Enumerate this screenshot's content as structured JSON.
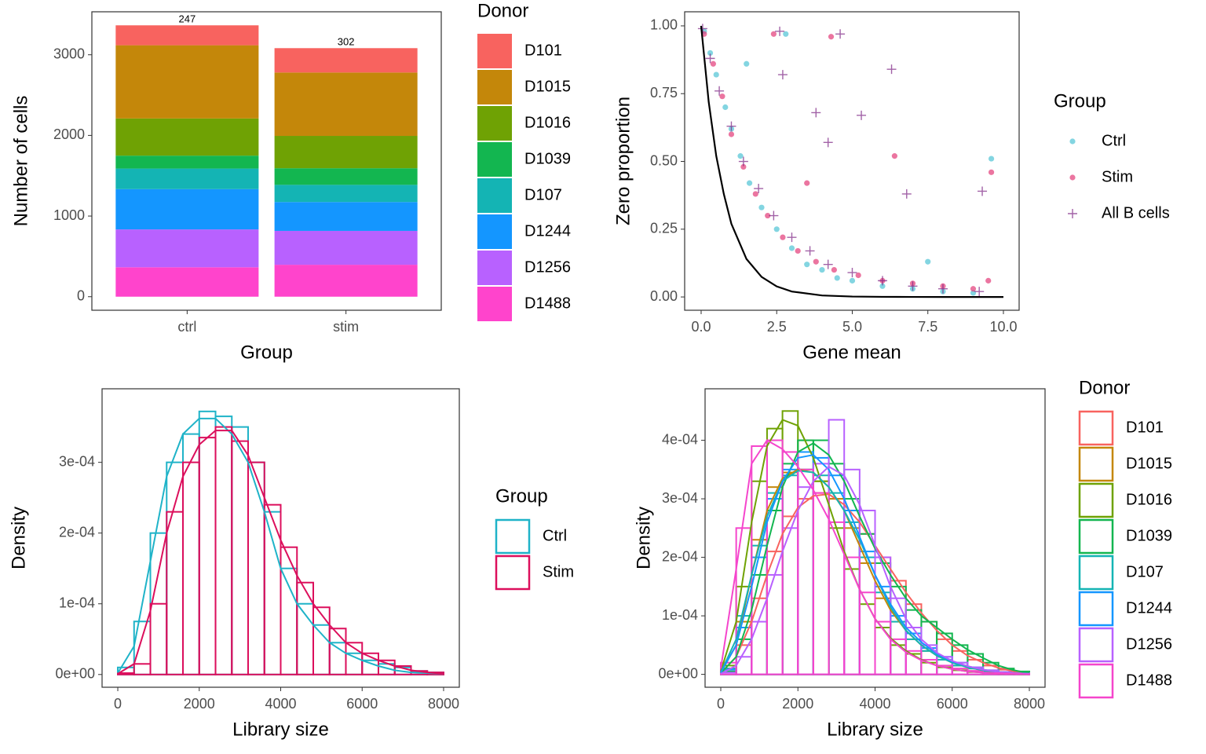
{
  "chart_data": [
    {
      "type": "stacked_bar",
      "x_label": "Group",
      "y_label": "Number of cells",
      "legend_title": "Donor",
      "legend": "right",
      "categories": [
        "ctrl",
        "stim"
      ],
      "series": [
        {
          "name": "D101",
          "color": "#f8635f",
          "values": [
            247,
            302
          ]
        },
        {
          "name": "D1015",
          "color": "#c4870a",
          "values": [
            908,
            786
          ]
        },
        {
          "name": "D1016",
          "color": "#6fa204",
          "values": [
            461,
            401
          ]
        },
        {
          "name": "D1039",
          "color": "#13b650",
          "values": [
            160,
            206
          ]
        },
        {
          "name": "D107",
          "color": "#14b4b4",
          "values": [
            255,
            213
          ]
        },
        {
          "name": "D1244",
          "color": "#1496ff",
          "values": [
            500,
            358
          ]
        },
        {
          "name": "D1256",
          "color": "#b861ff",
          "values": [
            469,
            420
          ]
        },
        {
          "name": "D1488",
          "color": "#ff44cc",
          "values": [
            365,
            396
          ]
        }
      ],
      "ylim": [
        -168,
        3533
      ],
      "yticks": [
        0,
        1000,
        2000,
        3000
      ]
    },
    {
      "type": "scatter",
      "x_label": "Gene mean",
      "y_label": "Zero proportion",
      "legend_title": "Group",
      "legend": "right",
      "series": [
        {
          "name": "Ctrl",
          "color": "#4fc3d4",
          "marker": "circle",
          "x": [
            0.1,
            0.3,
            0.5,
            0.8,
            1.0,
            1.3,
            1.6,
            2.0,
            2.5,
            3.0,
            3.5,
            4.0,
            4.5,
            5.0,
            6.0,
            7.0,
            8.0,
            9.0,
            9.6,
            2.8,
            1.5,
            7.5
          ],
          "values": [
            0.98,
            0.9,
            0.82,
            0.7,
            0.62,
            0.52,
            0.42,
            0.33,
            0.25,
            0.18,
            0.12,
            0.1,
            0.07,
            0.06,
            0.04,
            0.03,
            0.02,
            0.015,
            0.51,
            0.97,
            0.86,
            0.13
          ]
        },
        {
          "name": "Stim",
          "color": "#e23a78",
          "marker": "circle",
          "x": [
            0.1,
            0.4,
            0.7,
            1.0,
            1.4,
            1.8,
            2.2,
            2.7,
            3.2,
            3.8,
            4.4,
            5.2,
            6.0,
            7.0,
            8.0,
            9.0,
            9.5,
            9.6,
            2.4,
            4.3,
            6.4,
            3.5
          ],
          "values": [
            0.97,
            0.86,
            0.74,
            0.6,
            0.48,
            0.38,
            0.3,
            0.22,
            0.17,
            0.13,
            0.1,
            0.08,
            0.06,
            0.05,
            0.04,
            0.03,
            0.06,
            0.46,
            0.97,
            0.96,
            0.52,
            0.42
          ]
        },
        {
          "name": "All B cells",
          "color": "#7b1f82",
          "marker": "plus",
          "x": [
            0.05,
            0.3,
            0.6,
            1.0,
            1.4,
            1.9,
            2.4,
            3.0,
            3.6,
            4.2,
            5.0,
            6.0,
            7.0,
            8.0,
            9.2,
            2.6,
            4.6,
            6.3,
            5.3,
            4.2,
            6.8,
            9.3,
            3.8,
            2.7
          ],
          "values": [
            0.99,
            0.88,
            0.76,
            0.63,
            0.5,
            0.4,
            0.3,
            0.22,
            0.17,
            0.12,
            0.09,
            0.06,
            0.04,
            0.03,
            0.02,
            0.98,
            0.97,
            0.84,
            0.67,
            0.57,
            0.38,
            0.39,
            0.68,
            0.82
          ]
        }
      ],
      "curve": {
        "color": "#000000",
        "x": [
          0,
          0.25,
          0.5,
          0.75,
          1,
          1.5,
          2,
          2.5,
          3,
          4,
          5,
          6,
          7,
          8,
          10
        ],
        "values": [
          1,
          0.72,
          0.52,
          0.38,
          0.27,
          0.14,
          0.074,
          0.039,
          0.02,
          0.0055,
          0.0015,
          0.0004,
          0.0001,
          0,
          0
        ]
      },
      "xlim": [
        -0.545,
        10.52
      ],
      "ylim": [
        -0.049,
        1.052
      ],
      "xticks": [
        {
          "value": 0,
          "label": "0.0"
        },
        2.5,
        {
          "value": 5,
          "label": "5.0"
        },
        7.5,
        {
          "value": 10,
          "label": "10.0"
        }
      ],
      "yticks": [
        {
          "value": 0,
          "label": "0.00"
        },
        0.25,
        {
          "value": 0.5,
          "label": "0.50"
        },
        0.75,
        {
          "value": 1,
          "label": "1.00"
        }
      ]
    },
    {
      "type": "histogram",
      "x_label": "Library size",
      "y_label": "Density",
      "legend_title": "Group",
      "legend": "right",
      "bins": [
        0,
        400,
        800,
        1200,
        1600,
        2000,
        2400,
        2800,
        3200,
        3600,
        4000,
        4400,
        4800,
        5200,
        5600,
        6000,
        6400,
        6800,
        7200,
        7600,
        8000
      ],
      "series": [
        {
          "name": "Ctrl",
          "color": "#1fb3c8",
          "values": [
            1e-05,
            7.5e-05,
            0.0002,
            0.0003,
            0.00034,
            0.000372,
            0.000365,
            0.00035,
            0.0003,
            0.00023,
            0.00015,
            0.0001,
            7e-05,
            4.5e-05,
            3e-05,
            2e-05,
            1.5e-05,
            1e-05,
            5e-06,
            3e-06
          ],
          "density": [
            2e-06,
            4e-05,
            0.00016,
            0.00028,
            0.00034,
            0.000362,
            0.000362,
            0.00034,
            0.0003,
            0.00023,
            0.00015,
            0.0001,
            7e-05,
            4.5e-05,
            3e-05,
            2e-05,
            1.2e-05,
            6e-06,
            3e-06,
            2e-06,
            1e-06
          ]
        },
        {
          "name": "Stim",
          "color": "#dc0f5c",
          "values": [
            2e-06,
            1.5e-05,
            0.0001,
            0.00023,
            0.0003,
            0.000335,
            0.00035,
            0.00033,
            0.0003,
            0.00024,
            0.00018,
            0.00013,
            9.5e-05,
            6.5e-05,
            4.5e-05,
            3e-05,
            2e-05,
            1.2e-05,
            5e-06,
            3e-06
          ],
          "density": [
            1e-06,
            1.5e-05,
            9e-05,
            0.0002,
            0.00028,
            0.000325,
            0.000345,
            0.000345,
            0.00031,
            0.00025,
            0.00019,
            0.00014,
            0.0001,
            7e-05,
            4.5e-05,
            3e-05,
            2e-05,
            1.2e-05,
            6e-06,
            3e-06,
            1e-06
          ]
        }
      ],
      "xlim": [
        -386,
        8386
      ],
      "ylim": [
        -1.8e-05,
        0.000404
      ],
      "xticks": [
        0,
        2000,
        4000,
        6000,
        8000
      ],
      "yticks": [
        {
          "value": 0,
          "label": "0e+00"
        },
        {
          "value": 0.0001,
          "label": "1e-04"
        },
        {
          "value": 0.0002,
          "label": "2e-04"
        },
        {
          "value": 0.0003,
          "label": "3e-04"
        }
      ]
    },
    {
      "type": "histogram",
      "x_label": "Library size",
      "y_label": "Density",
      "legend_title": "Donor",
      "legend": "right",
      "bins": [
        0,
        400,
        800,
        1200,
        1600,
        2000,
        2400,
        2800,
        3200,
        3600,
        4000,
        4400,
        4800,
        5200,
        5600,
        6000,
        6400,
        6800,
        7200,
        7600,
        8000
      ],
      "series": [
        {
          "name": "D101",
          "color": "#f8635f",
          "values": [
            5e-06,
            5e-05,
            0.00013,
            0.00021,
            0.00027,
            0.0003,
            0.00031,
            0.0003,
            0.00028,
            0.00024,
            0.0002,
            0.00016,
            0.00012,
            9e-05,
            6e-05,
            4e-05,
            2.5e-05,
            1.5e-05,
            8e-06,
            4e-06
          ],
          "density": [
            2e-06,
            3e-05,
            9e-05,
            0.00017,
            0.00024,
            0.000285,
            0.000305,
            0.000308,
            0.00029,
            0.00026,
            0.00022,
            0.00018,
            0.00014,
            0.000105,
            7.5e-05,
            5e-05,
            3.2e-05,
            2e-05,
            1.1e-05,
            5e-06,
            2e-06
          ]
        },
        {
          "name": "D1015",
          "color": "#c4870a",
          "values": [
            1e-05,
            9e-05,
            0.00023,
            0.00032,
            0.000345,
            0.00035,
            0.00033,
            0.0003,
            0.00025,
            0.00019,
            0.00013,
            9e-05,
            6e-05,
            4e-05,
            2.5e-05,
            1.5e-05,
            1e-05,
            5e-06,
            3e-06,
            2e-06
          ],
          "density": [
            3e-06,
            5e-05,
            0.00017,
            0.00028,
            0.000335,
            0.00035,
            0.000345,
            0.00032,
            0.00028,
            0.00022,
            0.00016,
            0.00011,
            7.5e-05,
            5e-05,
            3.2e-05,
            2e-05,
            1.2e-05,
            7e-06,
            4e-06,
            2e-06,
            1e-06
          ]
        },
        {
          "name": "D1016",
          "color": "#6fa204",
          "values": [
            1.5e-05,
            0.00015,
            0.00033,
            0.00042,
            0.00045,
            0.0004,
            0.00033,
            0.00025,
            0.00018,
            0.00012,
            8e-05,
            5e-05,
            3.5e-05,
            2e-05,
            1.2e-05,
            7e-06,
            4e-06,
            2e-06,
            1e-06,
            1e-06
          ],
          "density": [
            5e-06,
            9e-05,
            0.00026,
            0.00039,
            0.000435,
            0.000425,
            0.00037,
            0.00029,
            0.00021,
            0.000145,
            9.5e-05,
            6.2e-05,
            4e-05,
            2.5e-05,
            1.5e-05,
            9e-06,
            5e-06,
            3e-06,
            2e-06,
            1e-06,
            0
          ]
        },
        {
          "name": "D1039",
          "color": "#13b650",
          "values": [
            5e-06,
            6e-05,
            0.00017,
            0.00028,
            0.00036,
            0.0004,
            0.0004,
            0.00036,
            0.0003,
            0.00024,
            0.00019,
            0.00015,
            0.00011,
            9e-05,
            7e-05,
            5e-05,
            3.5e-05,
            2e-05,
            1e-05,
            5e-06
          ],
          "density": [
            2e-06,
            3e-05,
            0.00011,
            0.00022,
            0.00032,
            0.00038,
            0.000395,
            0.000375,
            0.00033,
            0.00027,
            0.000215,
            0.00017,
            0.00013,
            0.0001,
            8e-05,
            6e-05,
            4.2e-05,
            2.8e-05,
            1.5e-05,
            7e-06,
            2e-06
          ]
        },
        {
          "name": "D107",
          "color": "#14b4b4",
          "values": [
            1e-05,
            0.0001,
            0.00022,
            0.00031,
            0.00034,
            0.00035,
            0.00034,
            0.00031,
            0.00026,
            0.0002,
            0.00014,
            9e-05,
            6e-05,
            4e-05,
            2.5e-05,
            1.5e-05,
            1e-05,
            5e-06,
            3e-06,
            2e-06
          ],
          "density": [
            3e-06,
            6e-05,
            0.00017,
            0.00027,
            0.00033,
            0.000348,
            0.000345,
            0.00032,
            0.00028,
            0.00023,
            0.00017,
            0.000115,
            7.5e-05,
            5e-05,
            3.2e-05,
            2e-05,
            1.2e-05,
            7e-06,
            4e-06,
            2e-06,
            1e-06
          ]
        },
        {
          "name": "D1244",
          "color": "#1496ff",
          "values": [
            8e-06,
            8e-05,
            0.0002,
            0.0003,
            0.00035,
            0.00038,
            0.00037,
            0.00034,
            0.00028,
            0.00021,
            0.00015,
            0.0001,
            7e-05,
            4.5e-05,
            3e-05,
            2e-05,
            1.2e-05,
            7e-06,
            4e-06,
            2e-06
          ],
          "density": [
            3e-06,
            5e-05,
            0.00015,
            0.00026,
            0.00033,
            0.00037,
            0.000375,
            0.00035,
            0.0003,
            0.000235,
            0.00017,
            0.00012,
            8e-05,
            5.5e-05,
            3.5e-05,
            2.2e-05,
            1.4e-05,
            8e-06,
            4e-06,
            2e-06,
            1e-06
          ]
        },
        {
          "name": "D1256",
          "color": "#b861ff",
          "values": [
            3e-06,
            3e-05,
            9e-05,
            0.00017,
            0.00025,
            0.00032,
            0.00036,
            0.000435,
            0.00035,
            0.00028,
            0.0002,
            0.00013,
            8e-05,
            5e-05,
            3e-05,
            2e-05,
            1.2e-05,
            7e-06,
            4e-06,
            2e-06
          ],
          "density": [
            1e-06,
            1.5e-05,
            6e-05,
            0.00013,
            0.00021,
            0.00028,
            0.00033,
            0.000355,
            0.00034,
            0.00029,
            0.00022,
            0.00015,
            9.5e-05,
            6e-05,
            3.7e-05,
            2.3e-05,
            1.4e-05,
            8e-06,
            4e-06,
            2e-06,
            1e-06
          ]
        },
        {
          "name": "D1488",
          "color": "#f545cc",
          "values": [
            2e-05,
            0.00025,
            0.00039,
            0.0004,
            0.00038,
            0.00035,
            0.00031,
            0.00026,
            0.0002,
            0.00014,
            9e-05,
            6e-05,
            4e-05,
            2.5e-05,
            1.5e-05,
            1e-05,
            6e-06,
            3e-06,
            2e-06,
            1e-06
          ],
          "density": [
            1e-05,
            0.00018,
            0.00036,
            0.0004,
            0.000385,
            0.000355,
            0.000315,
            0.000265,
            0.000205,
            0.000145,
            9.5e-05,
            6e-05,
            3.8e-05,
            2.4e-05,
            1.5e-05,
            9e-06,
            5e-06,
            3e-06,
            2e-06,
            1e-06,
            0
          ]
        }
      ],
      "xlim": [
        -407,
        8407
      ],
      "ylim": [
        -2.2e-05,
        0.000488
      ],
      "xticks": [
        0,
        2000,
        4000,
        6000,
        8000
      ],
      "yticks": [
        {
          "value": 0,
          "label": "0e+00"
        },
        {
          "value": 0.0001,
          "label": "1e-04"
        },
        {
          "value": 0.0002,
          "label": "2e-04"
        },
        {
          "value": 0.0003,
          "label": "3e-04"
        },
        {
          "value": 0.0004,
          "label": "4e-04"
        }
      ]
    }
  ]
}
